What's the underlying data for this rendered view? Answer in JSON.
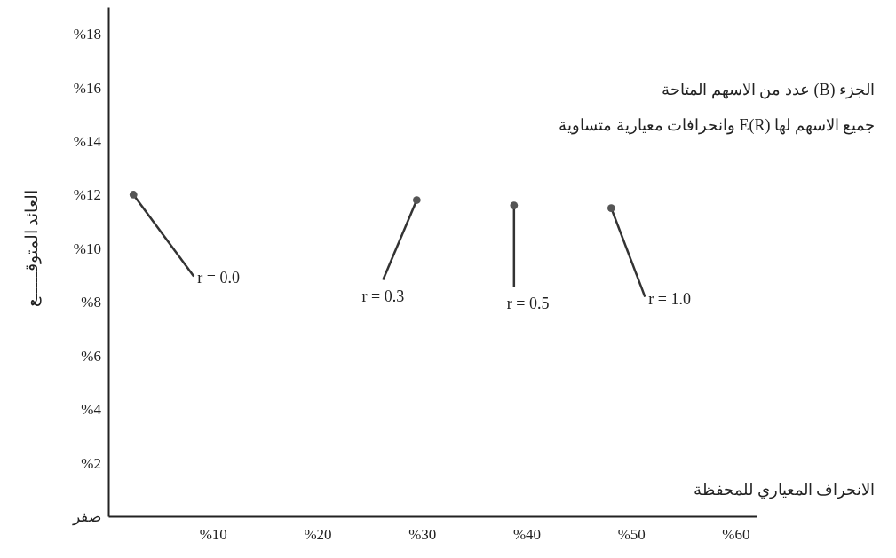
{
  "chart_data": {
    "type": "scatter",
    "title": "الجزء (B) عدد من الاسهم المتاحة",
    "subtitle": "جميع الاسهم لها E(R) وانحرافات معيارية متساوية",
    "xlabel": "الانحراف المعياري للمحفظة",
    "ylabel": "العائد المتوقـــــع",
    "x": [
      2.4,
      29.5,
      38.8,
      48.1
    ],
    "values": [
      12,
      11.8,
      11.6,
      11.5
    ],
    "color": "#555555",
    "marker": "circle",
    "xlim": [
      0,
      62
    ],
    "ylim": [
      0,
      19
    ],
    "xticks": [
      {
        "value": 10,
        "label": "%10"
      },
      {
        "value": 20,
        "label": "%20"
      },
      {
        "value": 30,
        "label": "%30"
      },
      {
        "value": 40,
        "label": "%40"
      },
      {
        "value": 50,
        "label": "%50"
      },
      {
        "value": 60,
        "label": "%60"
      }
    ],
    "yticks": [
      {
        "value": 0,
        "label": "صفر"
      },
      {
        "value": 2,
        "label": "%2"
      },
      {
        "value": 4,
        "label": "%4"
      },
      {
        "value": 6,
        "label": "%6"
      },
      {
        "value": 8,
        "label": "%8"
      },
      {
        "value": 10,
        "label": "%10"
      },
      {
        "value": 12,
        "label": "%12"
      },
      {
        "value": 14,
        "label": "%14"
      },
      {
        "value": 16,
        "label": "%16"
      },
      {
        "value": 18,
        "label": "%18"
      }
    ],
    "annotations": [
      {
        "text": "r = 0.0",
        "x": 2.4,
        "y": 12
      },
      {
        "text": "r = 0.3",
        "x": 29.5,
        "y": 11.8
      },
      {
        "text": "r = 0.5",
        "x": 38.8,
        "y": 11.6
      },
      {
        "text": "r = 1.0",
        "x": 48.1,
        "y": 11.5
      }
    ]
  }
}
